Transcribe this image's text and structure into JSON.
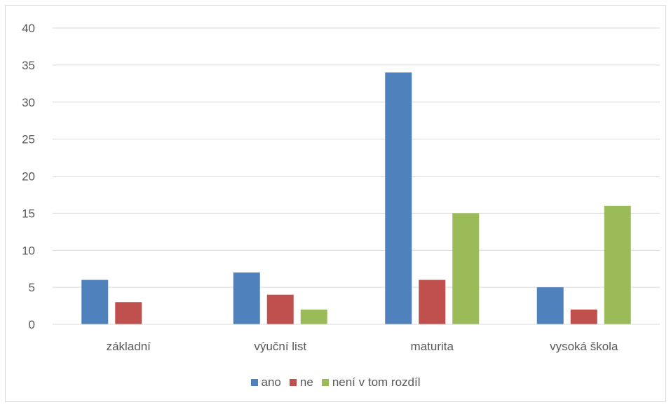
{
  "chart_data": {
    "type": "bar",
    "categories": [
      "základní",
      "výuční list",
      "maturita",
      "vysoká škola"
    ],
    "series": [
      {
        "name": "ano",
        "color": "#4f81bd",
        "values": [
          6,
          7,
          34,
          5
        ]
      },
      {
        "name": "ne",
        "color": "#c0504d",
        "values": [
          3,
          4,
          6,
          2
        ]
      },
      {
        "name": "není v tom rozdíl",
        "color": "#9bbb59",
        "values": [
          0,
          2,
          15,
          16
        ]
      }
    ],
    "ylim": [
      0,
      40
    ],
    "yticks": [
      0,
      5,
      10,
      15,
      20,
      25,
      30,
      35,
      40
    ],
    "grid": true,
    "legend_position": "bottom",
    "gridline_color": "#d9d9d9"
  }
}
